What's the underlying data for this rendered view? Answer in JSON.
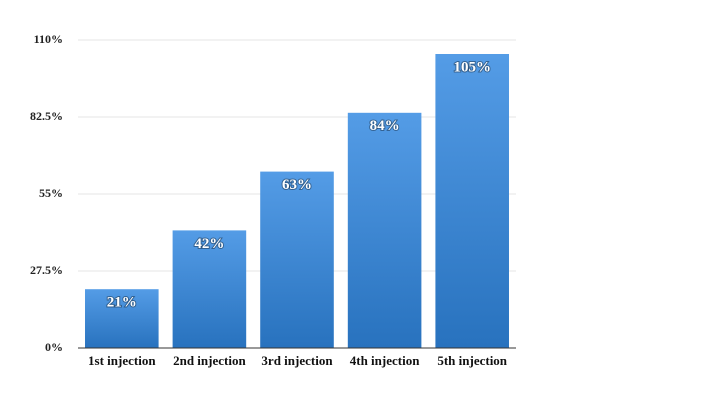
{
  "chart_data": {
    "type": "bar",
    "categories": [
      "1st injection",
      "2nd injection",
      "3rd injection",
      "4th injection",
      "5th injection"
    ],
    "values": [
      21,
      42,
      63,
      84,
      105
    ],
    "value_labels": [
      "21%",
      "42%",
      "63%",
      "84%",
      "105%"
    ],
    "color": "#2f86e0",
    "ylim": [
      0,
      110
    ],
    "yticks": [
      {
        "value": 0,
        "label": "0%"
      },
      {
        "value": 27.5,
        "label": "27.5%"
      },
      {
        "value": 55,
        "label": "55%"
      },
      {
        "value": 82.5,
        "label": "82.5%"
      },
      {
        "value": 110,
        "label": "110%"
      }
    ],
    "grid": true
  }
}
